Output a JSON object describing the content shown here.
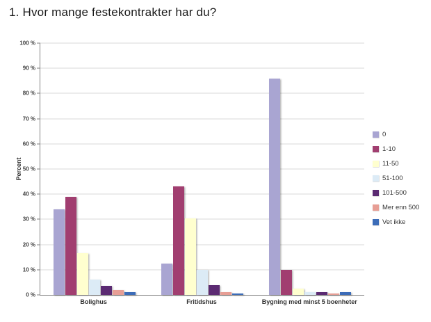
{
  "page": {
    "title": "1. Hvor mange festekontrakter har du?"
  },
  "chart_data": {
    "type": "bar",
    "title": "1. Hvor mange festekontrakter har du?",
    "xlabel": "",
    "ylabel": "Percent",
    "ylim": [
      0,
      100
    ],
    "ytick_step": 10,
    "ytick_suffix": " %",
    "grid": true,
    "legend_position": "right",
    "categories": [
      "Bolighus",
      "Fritidshus",
      "Bygning med minst 5 boenheter"
    ],
    "series": [
      {
        "name": "0",
        "color": "#a9a5d2",
        "values": [
          34,
          12.5,
          86
        ]
      },
      {
        "name": "1-10",
        "color": "#a13e70",
        "values": [
          39,
          43,
          10
        ]
      },
      {
        "name": "11-50",
        "color": "#ffffcf",
        "values": [
          16.5,
          30.5,
          2.5
        ]
      },
      {
        "name": "51-100",
        "color": "#dcebf6",
        "values": [
          6,
          10,
          1
        ]
      },
      {
        "name": "101-500",
        "color": "#5b2a72",
        "values": [
          3.5,
          4,
          1
        ]
      },
      {
        "name": "Mer enn 500",
        "color": "#e79e95",
        "values": [
          2,
          1,
          0.5
        ]
      },
      {
        "name": "Vet ikke",
        "color": "#3c6cb8",
        "values": [
          1,
          0.5,
          1
        ]
      }
    ]
  }
}
